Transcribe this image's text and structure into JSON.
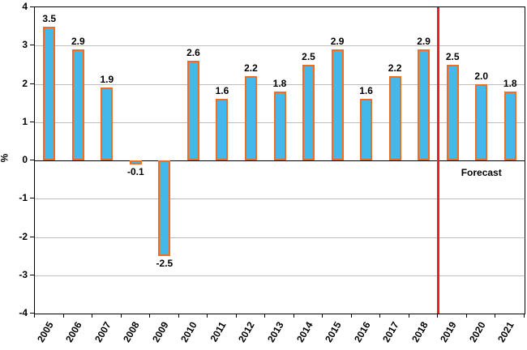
{
  "chart_data": {
    "type": "bar",
    "title": "",
    "xlabel": "",
    "ylabel": "%",
    "categories": [
      "2005",
      "2006",
      "2007",
      "2008",
      "2009",
      "2010",
      "2011",
      "2012",
      "2013",
      "2014",
      "2015",
      "2016",
      "2017",
      "2018",
      "2019",
      "2020",
      "2021"
    ],
    "values": [
      3.5,
      2.9,
      1.9,
      -0.1,
      -2.5,
      2.6,
      1.6,
      2.2,
      1.8,
      2.5,
      2.9,
      1.6,
      2.2,
      2.9,
      2.5,
      2.0,
      1.8
    ],
    "value_labels": [
      "3.5",
      "2.9",
      "1.9",
      "-0.1",
      "-2.5",
      "2.6",
      "1.6",
      "2.2",
      "1.8",
      "2.5",
      "2.9",
      "1.6",
      "2.2",
      "2.9",
      "2.5",
      "2.0",
      "1.8"
    ],
    "ylim": [
      -4,
      4
    ],
    "yticks": [
      4,
      3,
      2,
      1,
      0,
      -1,
      -2,
      -3,
      -4
    ],
    "grid": true,
    "legend": "none",
    "bar_fill_color": "#44b8e8",
    "bar_border_color": "#f26d21",
    "gridline_color": "#bdbdbd",
    "forecast_divider": {
      "after_category": "2018",
      "label": "Forecast",
      "line_color": "#e42320"
    }
  }
}
